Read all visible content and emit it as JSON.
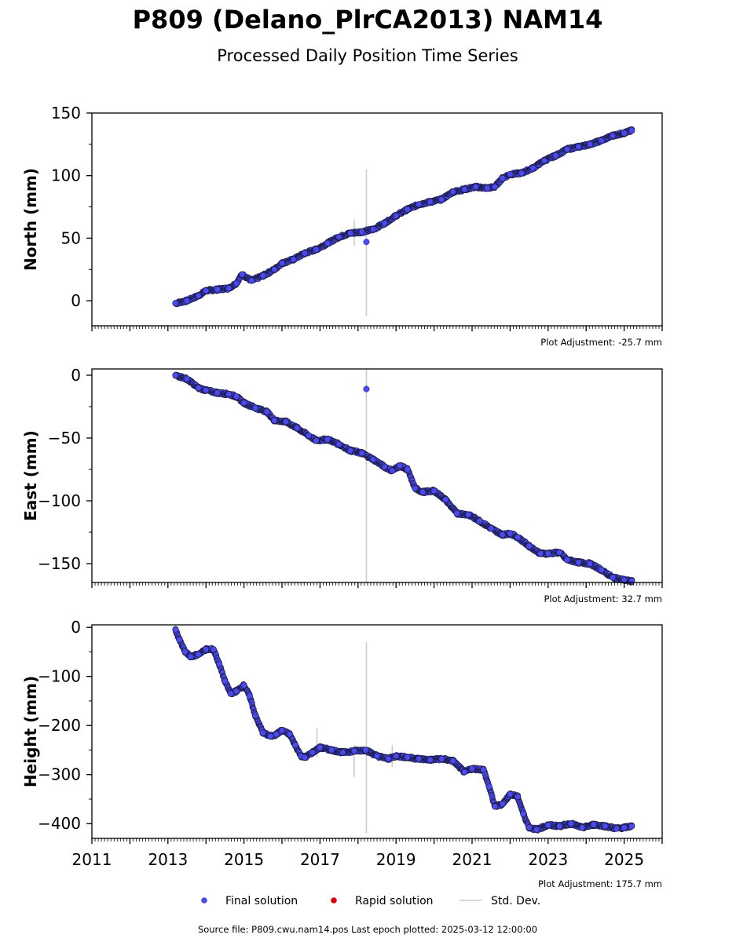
{
  "title": "P809 (Delano_PlrCA2013) NAM14",
  "subtitle": "Processed Daily Position Time Series",
  "footer": "Source file: P809.cwu.nam14.pos  Last epoch plotted: 2025-03-12 12:00:00",
  "legend": {
    "items": [
      {
        "label": "Final solution",
        "color": "#4a4af0",
        "kind": "dot"
      },
      {
        "label": "Rapid solution",
        "color": "#dd0000",
        "kind": "dot"
      },
      {
        "label": "Std. Dev.",
        "color": "#cccccc",
        "kind": "line"
      }
    ],
    "placement": "bottom-center"
  },
  "colors": {
    "final": "#4a4af0",
    "final_edge": "#1a1a40",
    "rapid": "#dd0000",
    "stddev": "#cccccc"
  },
  "chart_data": [
    {
      "type": "scatter",
      "ylabel": "North (mm)",
      "adjustment": "Plot Adjustment: -25.7 mm",
      "xlim": [
        2011,
        2026
      ],
      "ylim": [
        -20,
        150
      ],
      "yticks": [
        0,
        50,
        100,
        150
      ],
      "ytick_labels": [
        "0",
        "50",
        "100",
        "150"
      ],
      "series": [
        {
          "x": [
            2013.2,
            2013.5,
            2013.8,
            2014.0,
            2014.3,
            2014.6,
            2014.8,
            2014.95,
            2015.2,
            2015.5,
            2015.8,
            2016.0,
            2016.3,
            2016.6,
            2016.9,
            2017.2,
            2017.5,
            2017.8,
            2018.1,
            2018.4,
            2018.7,
            2019.0,
            2019.3,
            2019.6,
            2019.9,
            2020.2,
            2020.5,
            2020.8,
            2021.1,
            2021.4,
            2021.6,
            2021.8,
            2022.0,
            2022.3,
            2022.6,
            2022.9,
            2023.2,
            2023.5,
            2023.8,
            2024.1,
            2024.4,
            2024.7,
            2025.0,
            2025.2
          ],
          "y": [
            -2,
            0,
            4,
            8,
            9,
            10,
            14,
            21,
            16,
            20,
            25,
            30,
            33,
            38,
            41,
            46,
            51,
            54,
            55,
            57,
            62,
            68,
            73,
            77,
            79,
            81,
            87,
            89,
            91,
            90,
            91,
            98,
            101,
            102,
            106,
            112,
            116,
            121,
            123,
            125,
            128,
            132,
            134,
            136
          ]
        }
      ],
      "outliers": [
        {
          "x": 2018.22,
          "y": 47
        }
      ],
      "error_bars": [
        {
          "x": 2018.22,
          "low": -12,
          "high": 105
        },
        {
          "x": 2017.9,
          "low": 44,
          "high": 65
        }
      ]
    },
    {
      "type": "scatter",
      "ylabel": "East (mm)",
      "adjustment": "Plot Adjustment: 32.7 mm",
      "xlim": [
        2011,
        2026
      ],
      "ylim": [
        -165,
        5
      ],
      "yticks": [
        0,
        -50,
        -100,
        -150
      ],
      "ytick_labels": [
        "0",
        "−50",
        "−100",
        "−150"
      ],
      "series": [
        {
          "x": [
            2013.2,
            2013.5,
            2013.8,
            2014.0,
            2014.3,
            2014.6,
            2014.8,
            2015.0,
            2015.3,
            2015.6,
            2015.8,
            2016.1,
            2016.4,
            2016.7,
            2016.9,
            2017.2,
            2017.5,
            2017.8,
            2018.1,
            2018.4,
            2018.7,
            2018.9,
            2019.1,
            2019.3,
            2019.5,
            2019.7,
            2020.0,
            2020.3,
            2020.6,
            2020.9,
            2021.2,
            2021.5,
            2021.8,
            2022.0,
            2022.2,
            2022.5,
            2022.8,
            2023.0,
            2023.3,
            2023.5,
            2023.8,
            2024.1,
            2024.4,
            2024.7,
            2025.0,
            2025.2
          ],
          "y": [
            0,
            -3,
            -10,
            -12,
            -14,
            -15,
            -17,
            -22,
            -26,
            -29,
            -36,
            -37,
            -42,
            -48,
            -52,
            -51,
            -55,
            -60,
            -62,
            -67,
            -73,
            -76,
            -72,
            -75,
            -90,
            -93,
            -92,
            -99,
            -110,
            -111,
            -116,
            -122,
            -127,
            -126,
            -129,
            -136,
            -142,
            -142,
            -141,
            -147,
            -149,
            -150,
            -155,
            -161,
            -163,
            -164
          ]
        }
      ],
      "outliers": [
        {
          "x": 2018.22,
          "y": -11
        }
      ],
      "error_bars": [
        {
          "x": 2018.22,
          "low": -165,
          "high": 5
        }
      ]
    },
    {
      "type": "scatter",
      "ylabel": "Height (mm)",
      "adjustment": "Plot Adjustment: 175.7 mm",
      "xlim": [
        2011,
        2026
      ],
      "ylim": [
        -430,
        5
      ],
      "yticks": [
        0,
        -100,
        -200,
        -300,
        -400
      ],
      "ytick_labels": [
        "0",
        "−100",
        "−200",
        "−300",
        "−400"
      ],
      "xticks": [
        2011,
        2013,
        2015,
        2017,
        2019,
        2021,
        2023,
        2025
      ],
      "xtick_labels": [
        "2011",
        "2013",
        "2015",
        "2017",
        "2019",
        "2021",
        "2023",
        "2025"
      ],
      "series": [
        {
          "x": [
            2013.2,
            2013.3,
            2013.45,
            2013.6,
            2013.8,
            2014.0,
            2014.2,
            2014.35,
            2014.5,
            2014.65,
            2014.8,
            2015.0,
            2015.15,
            2015.3,
            2015.5,
            2015.7,
            2015.85,
            2016.0,
            2016.2,
            2016.35,
            2016.5,
            2016.6,
            2016.8,
            2017.0,
            2017.3,
            2017.6,
            2017.9,
            2018.2,
            2018.5,
            2018.8,
            2019.0,
            2019.3,
            2019.6,
            2019.9,
            2020.2,
            2020.5,
            2020.8,
            2021.0,
            2021.3,
            2021.45,
            2021.6,
            2021.8,
            2022.0,
            2022.2,
            2022.35,
            2022.5,
            2022.7,
            2023.0,
            2023.3,
            2023.6,
            2023.9,
            2024.2,
            2024.5,
            2024.8,
            2025.0,
            2025.2
          ],
          "y": [
            -5,
            -25,
            -50,
            -60,
            -55,
            -45,
            -45,
            -75,
            -110,
            -135,
            -130,
            -118,
            -140,
            -180,
            -215,
            -222,
            -218,
            -210,
            -218,
            -240,
            -262,
            -265,
            -255,
            -245,
            -250,
            -255,
            -252,
            -250,
            -262,
            -268,
            -262,
            -265,
            -268,
            -270,
            -268,
            -272,
            -295,
            -288,
            -290,
            -325,
            -365,
            -360,
            -340,
            -345,
            -380,
            -408,
            -412,
            -403,
            -405,
            -400,
            -408,
            -402,
            -405,
            -410,
            -408,
            -405
          ]
        }
      ],
      "outliers": [],
      "error_bars": [
        {
          "x": 2018.22,
          "low": -420,
          "high": -30
        },
        {
          "x": 2016.92,
          "low": -265,
          "high": -205
        },
        {
          "x": 2017.9,
          "low": -305,
          "high": -240
        },
        {
          "x": 2018.9,
          "low": -285,
          "high": -240
        }
      ]
    }
  ]
}
